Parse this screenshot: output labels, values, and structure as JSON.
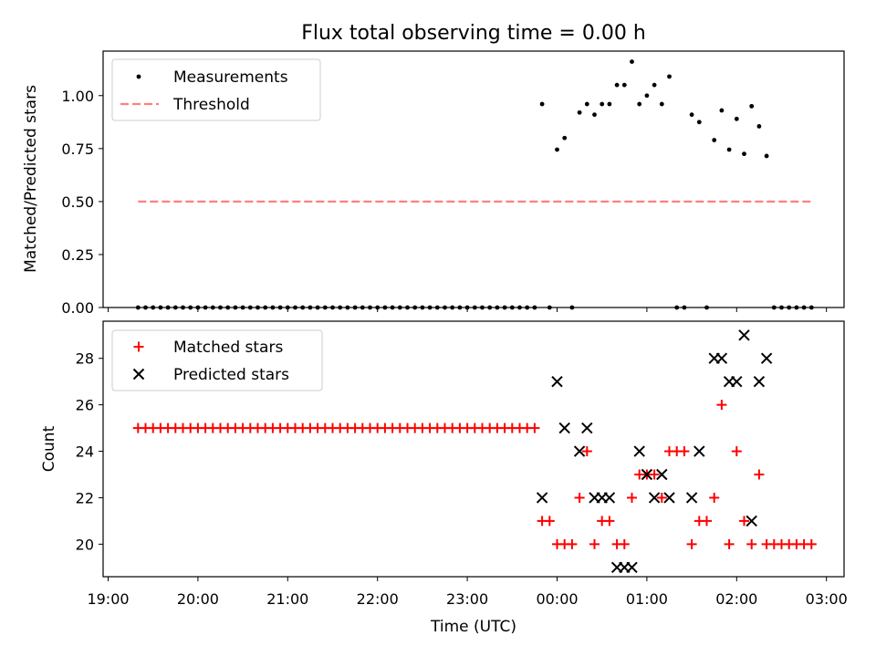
{
  "title": "Flux total observing time = 0.00 h",
  "chart_data": [
    {
      "type": "scatter",
      "panel": "top",
      "ylabel": "Matched/Predicted stars",
      "ylim": [
        0,
        1.21
      ],
      "yticks": [
        0.0,
        0.25,
        0.5,
        0.75,
        1.0
      ],
      "ytick_labels": [
        "0.00",
        "0.25",
        "0.50",
        "0.75",
        "1.00"
      ],
      "legend": {
        "placement": "top-left",
        "entries": [
          {
            "label": "Measurements",
            "style": "dot",
            "color": "#000000"
          },
          {
            "label": "Threshold",
            "style": "dashed-line",
            "color": "#ff7f7f"
          }
        ]
      },
      "series": [
        {
          "name": "Measurements",
          "marker": "dot",
          "color": "#000000",
          "zero_times": [
            "19:20",
            "19:25",
            "19:30",
            "19:35",
            "19:40",
            "19:45",
            "19:50",
            "19:55",
            "20:00",
            "20:05",
            "20:10",
            "20:15",
            "20:20",
            "20:25",
            "20:30",
            "20:35",
            "20:40",
            "20:45",
            "20:50",
            "20:55",
            "21:00",
            "21:05",
            "21:10",
            "21:15",
            "21:20",
            "21:25",
            "21:30",
            "21:35",
            "21:40",
            "21:45",
            "21:50",
            "21:55",
            "22:00",
            "22:05",
            "22:10",
            "22:15",
            "22:20",
            "22:25",
            "22:30",
            "22:35",
            "22:40",
            "22:45",
            "22:50",
            "22:55",
            "23:00",
            "23:05",
            "23:10",
            "23:15",
            "23:20",
            "23:25",
            "23:30",
            "23:35",
            "23:40",
            "23:45",
            "23:55",
            "00:10",
            "01:20",
            "01:25",
            "01:40",
            "02:25",
            "02:30",
            "02:35",
            "02:40",
            "02:45",
            "02:50"
          ],
          "points": [
            [
              "23:50",
              0.96
            ],
            [
              "24:00",
              0.745
            ],
            [
              "24:05",
              0.8
            ],
            [
              "24:15",
              0.92
            ],
            [
              "24:20",
              0.96
            ],
            [
              "24:25",
              0.91
            ],
            [
              "24:30",
              0.96
            ],
            [
              "24:35",
              0.96
            ],
            [
              "24:40",
              1.05
            ],
            [
              "24:45",
              1.05
            ],
            [
              "24:50",
              1.16
            ],
            [
              "24:55",
              0.96
            ],
            [
              "25:00",
              1.0
            ],
            [
              "25:05",
              1.05
            ],
            [
              "25:10",
              0.96
            ],
            [
              "25:15",
              1.09
            ],
            [
              "25:30",
              0.91
            ],
            [
              "25:35",
              0.875
            ],
            [
              "25:45",
              0.79
            ],
            [
              "25:50",
              0.93
            ],
            [
              "25:55",
              0.745
            ],
            [
              "26:00",
              0.89
            ],
            [
              "26:05",
              0.725
            ],
            [
              "26:10",
              0.95
            ],
            [
              "26:15",
              0.855
            ],
            [
              "26:20",
              0.715
            ]
          ]
        },
        {
          "name": "Threshold",
          "style": "dashed",
          "color": "#ff7f7f",
          "x": [
            "19:20",
            "02:50"
          ],
          "y": [
            0.5,
            0.5
          ]
        }
      ]
    },
    {
      "type": "scatter",
      "panel": "bottom",
      "ylabel": "Count",
      "xlabel": "Time (UTC)",
      "ylim": [
        18.6,
        29.6
      ],
      "yticks": [
        20,
        22,
        24,
        26,
        28
      ],
      "ytick_labels": [
        "20",
        "22",
        "24",
        "26",
        "28"
      ],
      "xticks": [
        "19:00",
        "20:00",
        "21:00",
        "22:00",
        "23:00",
        "00:00",
        "01:00",
        "02:00",
        "03:00"
      ],
      "legend": {
        "placement": "top-left",
        "entries": [
          {
            "label": "Matched stars",
            "style": "plus",
            "color": "#ff0000"
          },
          {
            "label": "Predicted stars",
            "style": "x",
            "color": "#000000"
          }
        ]
      },
      "series": [
        {
          "name": "Matched stars",
          "marker": "plus",
          "color": "#ff0000",
          "constant_value": 25,
          "constant_from": "19:20",
          "constant_to": "23:45",
          "constant_step_min": 5,
          "points": [
            [
              "23:50",
              21
            ],
            [
              "23:55",
              21
            ],
            [
              "24:00",
              20
            ],
            [
              "24:05",
              20
            ],
            [
              "24:10",
              20
            ],
            [
              "24:15",
              22
            ],
            [
              "24:20",
              24
            ],
            [
              "24:25",
              20
            ],
            [
              "24:30",
              21
            ],
            [
              "24:35",
              21
            ],
            [
              "24:40",
              20
            ],
            [
              "24:45",
              20
            ],
            [
              "24:50",
              22
            ],
            [
              "24:55",
              23
            ],
            [
              "25:00",
              23
            ],
            [
              "25:05",
              23
            ],
            [
              "25:10",
              22
            ],
            [
              "25:15",
              24
            ],
            [
              "25:20",
              24
            ],
            [
              "25:25",
              24
            ],
            [
              "25:30",
              20
            ],
            [
              "25:35",
              21
            ],
            [
              "25:40",
              21
            ],
            [
              "25:45",
              22
            ],
            [
              "25:50",
              26
            ],
            [
              "25:55",
              20
            ],
            [
              "26:00",
              24
            ],
            [
              "26:05",
              21
            ],
            [
              "26:10",
              20
            ],
            [
              "26:15",
              23
            ],
            [
              "26:20",
              20
            ],
            [
              "26:25",
              20
            ],
            [
              "26:30",
              20
            ],
            [
              "26:35",
              20
            ],
            [
              "26:40",
              20
            ],
            [
              "26:45",
              20
            ],
            [
              "26:50",
              20
            ]
          ]
        },
        {
          "name": "Predicted stars",
          "marker": "x",
          "color": "#000000",
          "points": [
            [
              "23:50",
              22
            ],
            [
              "24:00",
              27
            ],
            [
              "24:05",
              25
            ],
            [
              "24:15",
              24
            ],
            [
              "24:20",
              25
            ],
            [
              "24:25",
              22
            ],
            [
              "24:30",
              22
            ],
            [
              "24:35",
              22
            ],
            [
              "24:40",
              19
            ],
            [
              "24:45",
              19
            ],
            [
              "24:50",
              19
            ],
            [
              "24:55",
              24
            ],
            [
              "25:00",
              23
            ],
            [
              "25:05",
              22
            ],
            [
              "25:10",
              23
            ],
            [
              "25:15",
              22
            ],
            [
              "25:30",
              22
            ],
            [
              "25:35",
              24
            ],
            [
              "25:45",
              28
            ],
            [
              "25:50",
              28
            ],
            [
              "25:55",
              27
            ],
            [
              "26:00",
              27
            ],
            [
              "26:05",
              29
            ],
            [
              "26:10",
              21
            ],
            [
              "26:15",
              27
            ],
            [
              "26:20",
              28
            ]
          ]
        }
      ]
    }
  ]
}
